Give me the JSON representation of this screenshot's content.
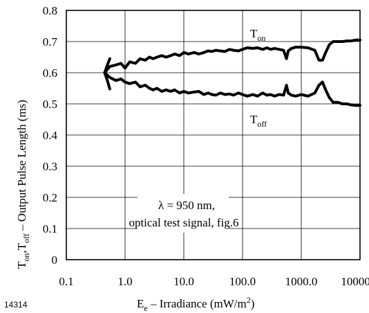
{
  "chart_data": {
    "type": "line",
    "figure_id": "14314",
    "xlabel": {
      "main": "E",
      "sub": "e",
      "rest": " – Irradiance (mW/m",
      "sup": "2",
      "close": ")"
    },
    "ylabel": {
      "t1": "T",
      "s1": "on",
      "sep": ",T",
      "s2": "off",
      "rest": "  –  Output Pulse Length (ms)"
    },
    "x_scale": "log",
    "xlim": [
      0.1,
      10000
    ],
    "ylim": [
      0,
      0.8
    ],
    "x_ticks": [
      {
        "value": 0.1,
        "label": "0.1"
      },
      {
        "value": 1,
        "label": "1.0"
      },
      {
        "value": 10,
        "label": "10.0"
      },
      {
        "value": 100,
        "label": "100.0"
      },
      {
        "value": 1000,
        "label": "1000.0"
      },
      {
        "value": 10000,
        "label": "10000.0"
      }
    ],
    "y_ticks": [
      {
        "value": 0,
        "label": "0"
      },
      {
        "value": 0.1,
        "label": "0.1"
      },
      {
        "value": 0.2,
        "label": "0.2"
      },
      {
        "value": 0.3,
        "label": "0.3"
      },
      {
        "value": 0.4,
        "label": "0.4"
      },
      {
        "value": 0.5,
        "label": "0.5"
      },
      {
        "value": 0.6,
        "label": "0.6"
      },
      {
        "value": 0.7,
        "label": "0.7"
      },
      {
        "value": 0.8,
        "label": "0.8"
      }
    ],
    "grid": true,
    "series": [
      {
        "name": "T_on",
        "label_main": "T",
        "label_sub": "on",
        "color": "#000000",
        "x": [
          0.45,
          0.55,
          0.7,
          0.85,
          1.0,
          1.2,
          1.5,
          1.8,
          2.2,
          2.6,
          3.0,
          3.5,
          4.2,
          5.0,
          6.0,
          7.0,
          8.5,
          10,
          12,
          15,
          18,
          22,
          26,
          30,
          35,
          42,
          50,
          60,
          70,
          85,
          100,
          120,
          150,
          180,
          220,
          260,
          300,
          350,
          420,
          500,
          560,
          600,
          680,
          800,
          1000,
          1300,
          1700,
          2000,
          2300,
          2600,
          3000,
          3500,
          4200,
          5000,
          6000,
          7000,
          8500,
          10000
        ],
        "y": [
          0.6,
          0.62,
          0.625,
          0.63,
          0.615,
          0.635,
          0.63,
          0.645,
          0.64,
          0.65,
          0.645,
          0.65,
          0.655,
          0.65,
          0.655,
          0.66,
          0.655,
          0.665,
          0.66,
          0.665,
          0.66,
          0.665,
          0.67,
          0.668,
          0.672,
          0.67,
          0.668,
          0.675,
          0.672,
          0.67,
          0.675,
          0.68,
          0.678,
          0.68,
          0.675,
          0.68,
          0.675,
          0.678,
          0.675,
          0.672,
          0.645,
          0.67,
          0.678,
          0.682,
          0.682,
          0.68,
          0.672,
          0.64,
          0.64,
          0.665,
          0.69,
          0.7,
          0.7,
          0.7,
          0.702,
          0.702,
          0.705,
          0.705
        ]
      },
      {
        "name": "T_off",
        "label_main": "T",
        "label_sub": "off",
        "color": "#000000",
        "x": [
          0.45,
          0.55,
          0.7,
          0.85,
          1.0,
          1.2,
          1.5,
          1.8,
          2.2,
          2.6,
          3.0,
          3.5,
          4.2,
          5.0,
          6.0,
          7.0,
          8.5,
          10,
          12,
          15,
          18,
          22,
          26,
          30,
          35,
          42,
          50,
          60,
          70,
          85,
          100,
          120,
          150,
          180,
          220,
          260,
          300,
          350,
          420,
          500,
          560,
          600,
          680,
          800,
          1000,
          1300,
          1700,
          2000,
          2300,
          2600,
          3000,
          3500,
          4200,
          5000,
          6000,
          7000,
          8500,
          10000
        ],
        "y": [
          0.6,
          0.585,
          0.575,
          0.58,
          0.57,
          0.565,
          0.57,
          0.555,
          0.56,
          0.55,
          0.545,
          0.55,
          0.54,
          0.545,
          0.54,
          0.545,
          0.535,
          0.54,
          0.535,
          0.538,
          0.54,
          0.53,
          0.535,
          0.53,
          0.528,
          0.535,
          0.53,
          0.532,
          0.528,
          0.535,
          0.53,
          0.525,
          0.53,
          0.525,
          0.535,
          0.528,
          0.53,
          0.525,
          0.53,
          0.528,
          0.56,
          0.535,
          0.528,
          0.525,
          0.53,
          0.525,
          0.535,
          0.56,
          0.57,
          0.545,
          0.52,
          0.505,
          0.505,
          0.5,
          0.5,
          0.497,
          0.495,
          0.495
        ]
      },
      {
        "name": "branch_upper",
        "color": "#000000",
        "x": [
          0.45,
          0.5,
          0.55
        ],
        "y": [
          0.6,
          0.625,
          0.645
        ]
      },
      {
        "name": "branch_lower",
        "color": "#000000",
        "x": [
          0.45,
          0.5,
          0.55
        ],
        "y": [
          0.6,
          0.575,
          0.548
        ]
      }
    ],
    "annotations": [
      {
        "text_line1": "λ = 950 nm,",
        "text_line2": "optical test signal, fig.6"
      }
    ]
  }
}
